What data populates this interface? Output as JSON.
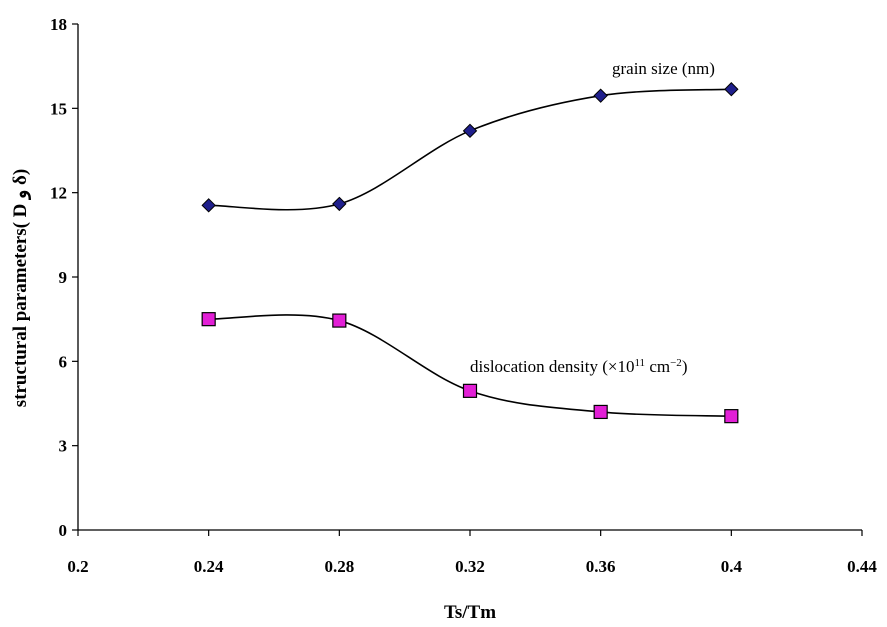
{
  "chart_data": {
    "type": "line",
    "title": "",
    "xlabel": "Ts/Tm",
    "ylabel": "structural parameters( D و δ)",
    "xlim": [
      0.2,
      0.44
    ],
    "ylim": [
      0,
      18
    ],
    "xticks": [
      "0.2",
      "0.24",
      "0.28",
      "0.32",
      "0.36",
      "0.4",
      "0.44"
    ],
    "yticks": [
      "0",
      "3",
      "6",
      "9",
      "12",
      "15",
      "18"
    ],
    "grid": false,
    "legend": "none",
    "smooth": true,
    "x": [
      0.24,
      0.28,
      0.32,
      0.36,
      0.4
    ],
    "series": [
      {
        "values": [
          11.55,
          11.6,
          14.2,
          15.45,
          15.68
        ],
        "marker": "diamond",
        "color": "#1f1f8c",
        "annotation": {
          "prefix": "grain size (nm)",
          "sup1": "",
          "mid": "",
          "sup2": "",
          "suffix": ""
        }
      },
      {
        "values": [
          7.5,
          7.45,
          4.95,
          4.2,
          4.05
        ],
        "marker": "square",
        "color": "#e21fd6",
        "annotation": {
          "prefix": "dislocation density (×10",
          "sup1": "11",
          "mid": " cm",
          "sup2": "−2",
          "suffix": ")"
        }
      }
    ]
  }
}
